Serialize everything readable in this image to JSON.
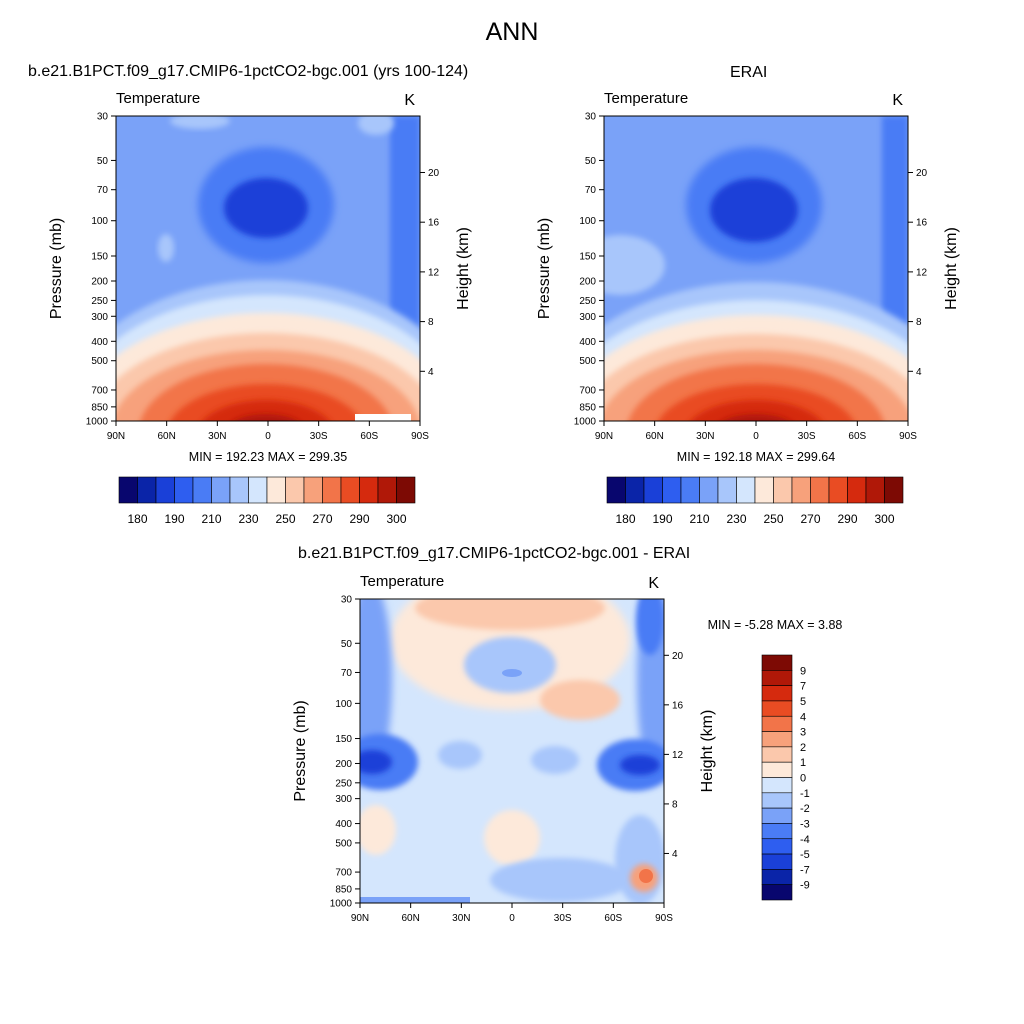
{
  "figure": {
    "title": "ANN",
    "panels": [
      {
        "title": "b.e21.B1PCT.f09_g17.CMIP6-1pctCO2-bgc.001 (yrs 100-124)",
        "left_label": "Temperature",
        "right_label": "K",
        "ylabel": "Pressure (mb)",
        "ylabel_right": "Height (km)",
        "stats": "MIN = 192.23  MAX = 299.35"
      },
      {
        "title": "ERAI",
        "left_label": "Temperature",
        "right_label": "K",
        "ylabel": "Pressure (mb)",
        "ylabel_right": "Height (km)",
        "stats": "MIN = 192.18  MAX = 299.64"
      },
      {
        "title": "b.e21.B1PCT.f09_g17.CMIP6-1pctCO2-bgc.001 - ERAI",
        "left_label": "Temperature",
        "right_label": "K",
        "ylabel": "Pressure (mb)",
        "ylabel_right": "Height (km)",
        "stats": "MIN =  -5.28  MAX =   3.88"
      }
    ]
  },
  "colors": {
    "temp_levels": [
      "#08066e",
      "#0a24a8",
      "#1a40d8",
      "#2e5ef0",
      "#4a7cf5",
      "#7aa2f8",
      "#a8c6fb",
      "#d4e6fd",
      "#fde9da",
      "#fbc8ac",
      "#f7a17b",
      "#f27449",
      "#e94c23",
      "#d52a0e",
      "#b01808",
      "#7d0a04"
    ],
    "diff_levels": [
      "#08066e",
      "#0a24a8",
      "#1a40d8",
      "#2e5ef0",
      "#4a7cf5",
      "#7aa2f8",
      "#a8c6fb",
      "#d4e6fd",
      "#fde9da",
      "#fbc8ac",
      "#f7a17b",
      "#f27449",
      "#e94c23",
      "#d52a0e",
      "#b01808",
      "#7d0a04"
    ]
  },
  "chart_data": [
    {
      "type": "heatmap",
      "title": "b.e21.B1PCT.f09_g17.CMIP6-1pctCO2-bgc.001 (yrs 100-124)",
      "variable": "Temperature",
      "units": "K",
      "x_ticks": [
        "90N",
        "60N",
        "30N",
        "0",
        "30S",
        "60S",
        "90S"
      ],
      "y_ticks": [
        30,
        50,
        70,
        100,
        150,
        200,
        250,
        300,
        400,
        500,
        700,
        850,
        1000
      ],
      "y_axis": "log pressure, 1000 at bottom",
      "ylim": [
        1000,
        30
      ],
      "height_ticks_km": [
        4,
        8,
        12,
        16,
        20
      ],
      "contour_levels_approx": [
        180,
        190,
        200,
        210,
        220,
        230,
        240,
        250,
        260,
        270,
        280,
        290,
        300
      ],
      "colorbar_labels": [
        "180",
        "190",
        "210",
        "230",
        "250",
        "270",
        "290",
        "300"
      ],
      "min": 192.23,
      "max": 299.35
    },
    {
      "type": "heatmap",
      "title": "ERAI",
      "variable": "Temperature",
      "units": "K",
      "x_ticks": [
        "90N",
        "60N",
        "30N",
        "0",
        "30S",
        "60S",
        "90S"
      ],
      "y_ticks": [
        30,
        50,
        70,
        100,
        150,
        200,
        250,
        300,
        400,
        500,
        700,
        850,
        1000
      ],
      "y_axis": "log pressure, 1000 at bottom",
      "ylim": [
        1000,
        30
      ],
      "height_ticks_km": [
        4,
        8,
        12,
        16,
        20
      ],
      "colorbar_labels": [
        "180",
        "190",
        "210",
        "230",
        "250",
        "270",
        "290",
        "300"
      ],
      "min": 192.18,
      "max": 299.64
    },
    {
      "type": "heatmap",
      "title": "b.e21.B1PCT.f09_g17.CMIP6-1pctCO2-bgc.001 - ERAI",
      "variable": "Temperature",
      "units": "K",
      "x_ticks": [
        "90N",
        "60N",
        "30N",
        "0",
        "30S",
        "60S",
        "90S"
      ],
      "y_ticks": [
        30,
        50,
        70,
        100,
        150,
        200,
        250,
        300,
        400,
        500,
        700,
        850,
        1000
      ],
      "y_axis": "log pressure, 1000 at bottom",
      "ylim": [
        1000,
        30
      ],
      "height_ticks_km": [
        4,
        8,
        12,
        16,
        20
      ],
      "colorbar_labels": [
        "9",
        "7",
        "5",
        "4",
        "3",
        "2",
        "1",
        "0",
        "-1",
        "-2",
        "-3",
        "-4",
        "-5",
        "-7",
        "-9"
      ],
      "min": -5.28,
      "max": 3.88
    }
  ]
}
